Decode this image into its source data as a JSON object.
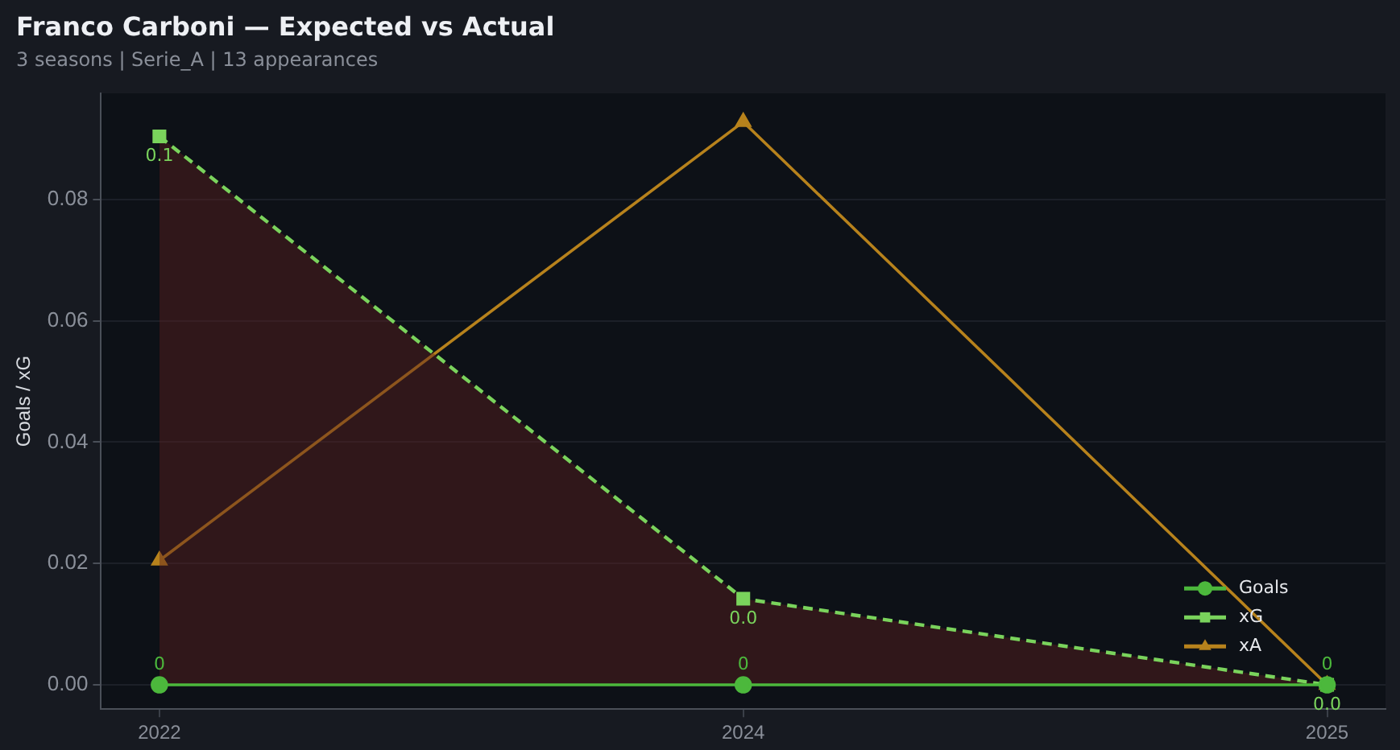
{
  "chart_data": {
    "type": "line",
    "title": "Franco Carboni — Expected vs Actual",
    "subtitle": "3 seasons | Serie_A | 13 appearances",
    "ylabel": "Goals / xG",
    "categories": [
      "2022",
      "2024",
      "2025"
    ],
    "series": [
      {
        "name": "Goals",
        "color": "#4cb83c",
        "values": [
          0,
          0,
          0
        ],
        "marker": "circle",
        "line_style": "solid",
        "value_labels": [
          "0",
          "0",
          "0"
        ]
      },
      {
        "name": "xG",
        "type": "area",
        "color": "#7ad35c",
        "values": [
          0.0904,
          0.0142,
          0
        ],
        "marker": "square",
        "line_style": "dashed",
        "value_labels": [
          "0.1",
          "0.0",
          "0.0"
        ]
      },
      {
        "name": "xA",
        "color": "#b7821c",
        "values": [
          0.0205,
          0.0928,
          0
        ],
        "marker": "triangle",
        "line_style": "solid"
      }
    ],
    "ylim": [
      -0.004,
      0.0975
    ],
    "yticks": [
      {
        "value": 0,
        "label": "0.00"
      },
      {
        "value": 0.02,
        "label": "0.02"
      },
      {
        "value": 0.04,
        "label": "0.04"
      },
      {
        "value": 0.06,
        "label": "0.06"
      },
      {
        "value": 0.08,
        "label": "0.08"
      }
    ],
    "grid": "y",
    "legend": "bottom right"
  }
}
